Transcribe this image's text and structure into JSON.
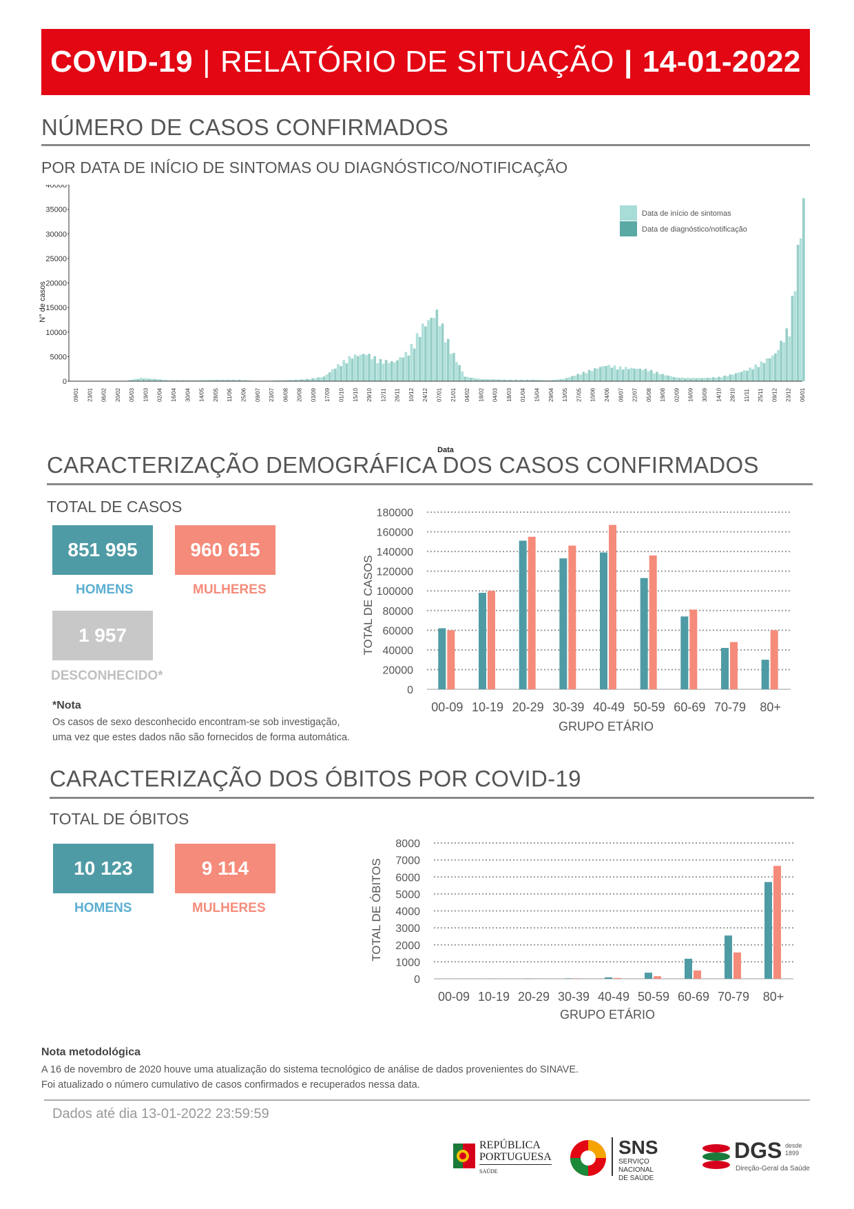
{
  "banner": {
    "part1": "COVID-19",
    "sep1": "|",
    "part2": "RELATÓRIO DE SITUAÇÃO",
    "sep2": "|",
    "part3": "14-01-2022"
  },
  "section1": {
    "title": "NÚMERO DE CASOS CONFIRMADOS",
    "subtitle": "POR DATA DE INÍCIO DE SINTOMAS OU DIAGNÓSTICO/NOTIFICAÇÃO"
  },
  "section2": {
    "title": "CARACTERIZAÇÃO DEMOGRÁFICA DOS CASOS CONFIRMADOS",
    "subtitle": "TOTAL DE CASOS",
    "men_value": "851 995",
    "men_label": "HOMENS",
    "women_value": "960 615",
    "women_label": "MULHERES",
    "unknown_value": "1 957",
    "unknown_label": "DESCONHECIDO*",
    "note_title": "*Nota",
    "note_line1": "Os casos de sexo desconhecido encontram-se sob investigação,",
    "note_line2": "uma vez que estes dados não são fornecidos de forma automática."
  },
  "section3": {
    "title": "CARACTERIZAÇÃO DOS ÓBITOS POR COVID-19",
    "subtitle": "TOTAL DE ÓBITOS",
    "men_value": "10 123",
    "men_label": "HOMENS",
    "women_value": "9 114",
    "women_label": "MULHERES"
  },
  "methodology": {
    "title": "Nota metodológica",
    "line1": "A 16 de novembro de 2020 houve uma atualização do sistema tecnológico de análise de dados provenientes do SINAVE.",
    "line2": "Foi atualizado o número cumulativo de casos confirmados e recuperados nessa data."
  },
  "footer": {
    "data_until": "Dados até dia 13-01-2022 23:59:59",
    "logo1_line1": "REPÚBLICA",
    "logo1_line2": "PORTUGUESA",
    "logo1_line3": "SAÚDE",
    "logo2_line1": "SNS",
    "logo2_line2": "SERVIÇO NACIONAL",
    "logo2_line3": "DE SAÚDE",
    "logo3_line1": "DGS",
    "logo3_line2": "Direção-Geral da Saúde",
    "logo3_line3": "desde",
    "logo3_line4": "1899"
  },
  "colors": {
    "red": "#e30613",
    "men": "#4f9ba5",
    "women": "#f58b7a",
    "unknown": "#c8c8c8",
    "symptoms": "#a7ddd6",
    "diagnosis": "#5aa9a4"
  },
  "chart_data": [
    {
      "type": "bar",
      "title": "",
      "xlabel": "Data",
      "ylabel": "N° de casos",
      "ylim": [
        0,
        40000
      ],
      "yticks": [
        "0",
        "5000",
        "10000",
        "15000",
        "20000",
        "25000",
        "30000",
        "35000",
        "40000"
      ],
      "xticks": [
        "09/01",
        "23/01",
        "06/02",
        "20/02",
        "05/03",
        "19/03",
        "02/04",
        "16/04",
        "30/04",
        "14/05",
        "28/05",
        "11/06",
        "25/06",
        "09/07",
        "23/07",
        "06/08",
        "20/08",
        "03/09",
        "17/09",
        "01/10",
        "15/10",
        "29/10",
        "12/11",
        "26/11",
        "10/12",
        "24/12",
        "07/01",
        "21/01",
        "04/02",
        "18/02",
        "04/03",
        "18/03",
        "01/04",
        "15/04",
        "29/04",
        "13/05",
        "27/05",
        "10/06",
        "24/06",
        "08/07",
        "22/07",
        "05/08",
        "19/08",
        "02/09",
        "16/09",
        "30/09",
        "14/10",
        "28/10",
        "11/11",
        "25/11",
        "09/12",
        "23/12",
        "06/01"
      ],
      "legend": [
        "Data de início de sintomas",
        "Data de diagnóstico/notificação"
      ],
      "legend_position": "top-right",
      "series_approx": {
        "x_index": [
          0,
          5,
          10,
          15,
          20,
          25,
          30,
          35,
          40,
          45,
          50,
          55,
          60,
          65,
          70,
          75,
          80,
          85,
          90,
          95,
          100,
          105,
          110,
          115,
          120,
          125,
          130,
          135,
          140,
          145,
          150,
          155,
          160,
          165,
          170,
          175,
          180,
          185,
          190,
          195,
          200,
          205,
          210,
          215,
          220,
          225,
          230,
          235,
          240,
          245,
          250,
          255,
          260
        ],
        "values": [
          0,
          0,
          0,
          0,
          100,
          700,
          500,
          200,
          200,
          200,
          300,
          300,
          300,
          100,
          100,
          200,
          300,
          500,
          1000,
          3500,
          5500,
          6000,
          4500,
          4200,
          6500,
          12000,
          15000,
          7000,
          1000,
          500,
          400,
          300,
          300,
          300,
          200,
          500,
          1500,
          2500,
          3500,
          3000,
          2800,
          2500,
          1500,
          800,
          700,
          700,
          900,
          1500,
          2500,
          4000,
          6000,
          12000,
          39000
        ]
      }
    },
    {
      "type": "bar",
      "title": "",
      "xlabel": "GRUPO ETÁRIO",
      "ylabel": "TOTAL DE CASOS",
      "ylim": [
        0,
        180000
      ],
      "yticks": [
        "0",
        "20000",
        "40000",
        "60000",
        "80000",
        "100000",
        "120000",
        "140000",
        "160000",
        "180000"
      ],
      "categories": [
        "00-09",
        "10-19",
        "20-29",
        "30-39",
        "40-49",
        "50-59",
        "60-69",
        "70-79",
        "80+"
      ],
      "series": [
        {
          "color": "#4f9ba5",
          "values": [
            62000,
            98000,
            151000,
            133000,
            139000,
            113000,
            74000,
            42000,
            30000
          ]
        },
        {
          "color": "#f58b7a",
          "values": [
            60000,
            100000,
            155000,
            146000,
            167000,
            136000,
            81000,
            48000,
            60000
          ]
        }
      ]
    },
    {
      "type": "bar",
      "title": "",
      "xlabel": "GRUPO ETÁRIO",
      "ylabel": "TOTAL DE ÓBITOS",
      "ylim": [
        0,
        8000
      ],
      "yticks": [
        "0",
        "1000",
        "2000",
        "3000",
        "4000",
        "5000",
        "6000",
        "7000",
        "8000"
      ],
      "categories": [
        "00-09",
        "10-19",
        "20-29",
        "30-39",
        "40-49",
        "50-59",
        "60-69",
        "70-79",
        "80+"
      ],
      "series": [
        {
          "color": "#4f9ba5",
          "values": [
            2,
            3,
            8,
            20,
            85,
            360,
            1180,
            2550,
            5700
          ]
        },
        {
          "color": "#f58b7a",
          "values": [
            1,
            2,
            5,
            15,
            45,
            150,
            490,
            1550,
            6650
          ]
        }
      ]
    }
  ]
}
